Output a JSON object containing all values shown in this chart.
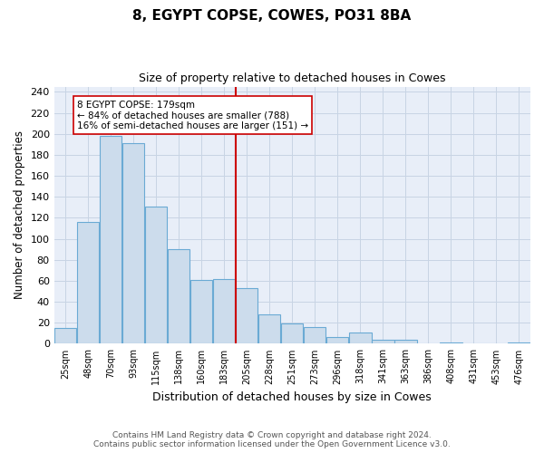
{
  "title": "8, EGYPT COPSE, COWES, PO31 8BA",
  "subtitle": "Size of property relative to detached houses in Cowes",
  "xlabel": "Distribution of detached houses by size in Cowes",
  "ylabel": "Number of detached properties",
  "bin_labels": [
    "25sqm",
    "48sqm",
    "70sqm",
    "93sqm",
    "115sqm",
    "138sqm",
    "160sqm",
    "183sqm",
    "205sqm",
    "228sqm",
    "251sqm",
    "273sqm",
    "296sqm",
    "318sqm",
    "341sqm",
    "363sqm",
    "386sqm",
    "408sqm",
    "431sqm",
    "453sqm",
    "476sqm"
  ],
  "bar_heights": [
    15,
    116,
    198,
    191,
    131,
    90,
    61,
    62,
    53,
    28,
    19,
    16,
    6,
    11,
    4,
    4,
    0,
    1,
    0,
    0,
    1
  ],
  "bar_color": "#ccdcec",
  "bar_edge_color": "#6aaad4",
  "property_bin_index": 7,
  "vline_color": "#cc0000",
  "annotation_text": "8 EGYPT COPSE: 179sqm\n← 84% of detached houses are smaller (788)\n16% of semi-detached houses are larger (151) →",
  "annotation_box_color": "#ffffff",
  "annotation_box_edge": "#cc0000",
  "ylim": [
    0,
    245
  ],
  "yticks": [
    0,
    20,
    40,
    60,
    80,
    100,
    120,
    140,
    160,
    180,
    200,
    220,
    240
  ],
  "grid_color": "#c8d4e4",
  "plot_bg_color": "#e8eef8",
  "footer_line1": "Contains HM Land Registry data © Crown copyright and database right 2024.",
  "footer_line2": "Contains public sector information licensed under the Open Government Licence v3.0."
}
